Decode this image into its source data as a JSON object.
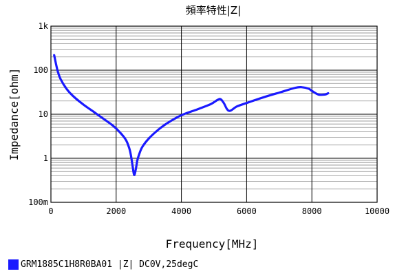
{
  "chart_data": {
    "type": "line",
    "title": "頻率特性|Z|",
    "xlabel": "Frequency[MHz]",
    "ylabel": "Impedance[ohm]",
    "xlim": [
      0,
      10000
    ],
    "ylim": [
      0.1,
      1000
    ],
    "yscale": "log",
    "grid": true,
    "x_ticks": [
      0,
      2000,
      4000,
      6000,
      8000,
      10000
    ],
    "x_tick_labels": [
      "0",
      "2000",
      "4000",
      "6000",
      "8000",
      "10000"
    ],
    "y_ticks": [
      0.1,
      1,
      10,
      100,
      1000
    ],
    "y_tick_labels": [
      "100m",
      "1",
      "10",
      "100",
      "1k"
    ],
    "legend_position": "bottom-left",
    "series": [
      {
        "name": "GRM1885C1H8R0BA01 |Z| DC0V,25degC",
        "color": "#1a1aff",
        "x": [
          100,
          200,
          300,
          500,
          700,
          1000,
          1300,
          1600,
          1900,
          2100,
          2300,
          2400,
          2450,
          2500,
          2550,
          2600,
          2650,
          2700,
          2800,
          3000,
          3300,
          3600,
          4000,
          4500,
          4900,
          5100,
          5200,
          5300,
          5400,
          5500,
          5700,
          6000,
          6500,
          7000,
          7500,
          7700,
          7900,
          8000,
          8200,
          8400,
          8500
        ],
        "y": [
          220,
          100,
          62,
          36,
          25,
          16.5,
          11.5,
          8.0,
          5.5,
          4.0,
          2.6,
          1.7,
          1.2,
          0.7,
          0.42,
          0.55,
          0.9,
          1.2,
          1.8,
          2.8,
          4.5,
          6.5,
          9.5,
          13,
          17,
          21,
          22,
          18,
          13,
          12,
          15,
          18,
          24,
          31,
          40,
          41,
          38,
          34,
          28,
          28,
          30
        ]
      }
    ]
  }
}
